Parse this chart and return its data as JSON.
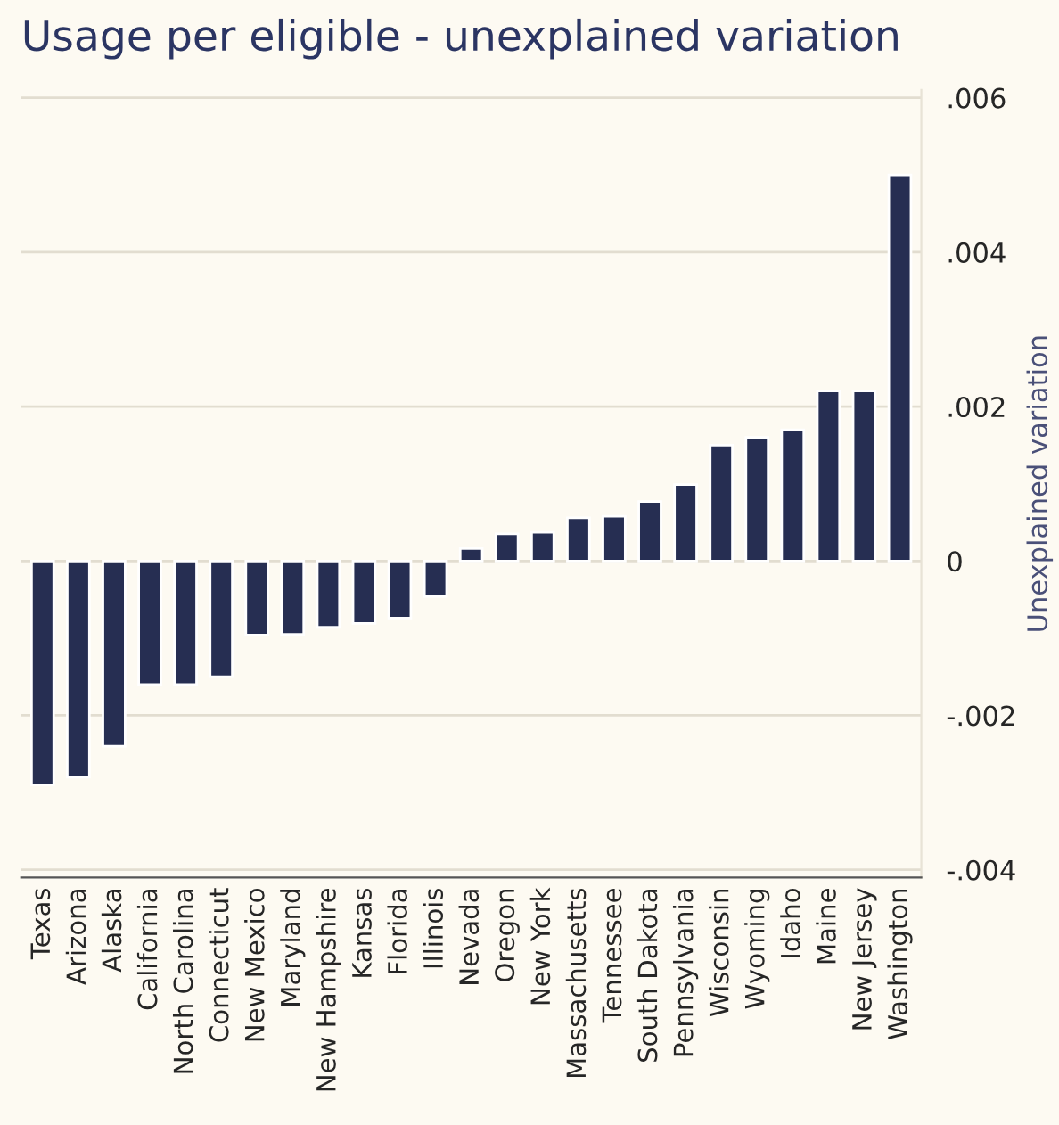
{
  "chart_data": {
    "type": "bar",
    "title": "Usage per eligible - unexplained variation",
    "ylabel": "Unexplained variation",
    "categories": [
      "Texas",
      "Arizona",
      "Alaska",
      "California",
      "North Carolina",
      "Connecticut",
      "New Mexico",
      "Maryland",
      "New Hampshire",
      "Kansas",
      "Florida",
      "Illinois",
      "Nevada",
      "Oregon",
      "New York",
      "Massachusetts",
      "Tennessee",
      "South Dakota",
      "Pennsylvania",
      "Wisconsin",
      "Wyoming",
      "Idaho",
      "Maine",
      "New Jersey",
      "Washington"
    ],
    "values": [
      -0.0029,
      -0.0028,
      -0.0024,
      -0.0016,
      -0.0016,
      -0.0015,
      -0.00096,
      -0.00095,
      -0.00086,
      -0.00081,
      -0.00074,
      -0.00046,
      0.00016,
      0.00035,
      0.00037,
      0.00056,
      0.00058,
      0.00077,
      0.00099,
      0.0015,
      0.0016,
      0.0017,
      0.0022,
      0.0022,
      0.005
    ],
    "color": "#262e52",
    "ylim": [
      -0.0041,
      0.0061
    ],
    "yticks": [
      {
        "value": -0.004,
        "label": "-.004"
      },
      {
        "value": -0.002,
        "label": "-.002"
      },
      0,
      {
        "value": 0.002,
        "label": ".002"
      },
      {
        "value": 0.004,
        "label": ".004"
      },
      {
        "value": 0.006,
        "label": ".006"
      }
    ],
    "grid": "y"
  }
}
